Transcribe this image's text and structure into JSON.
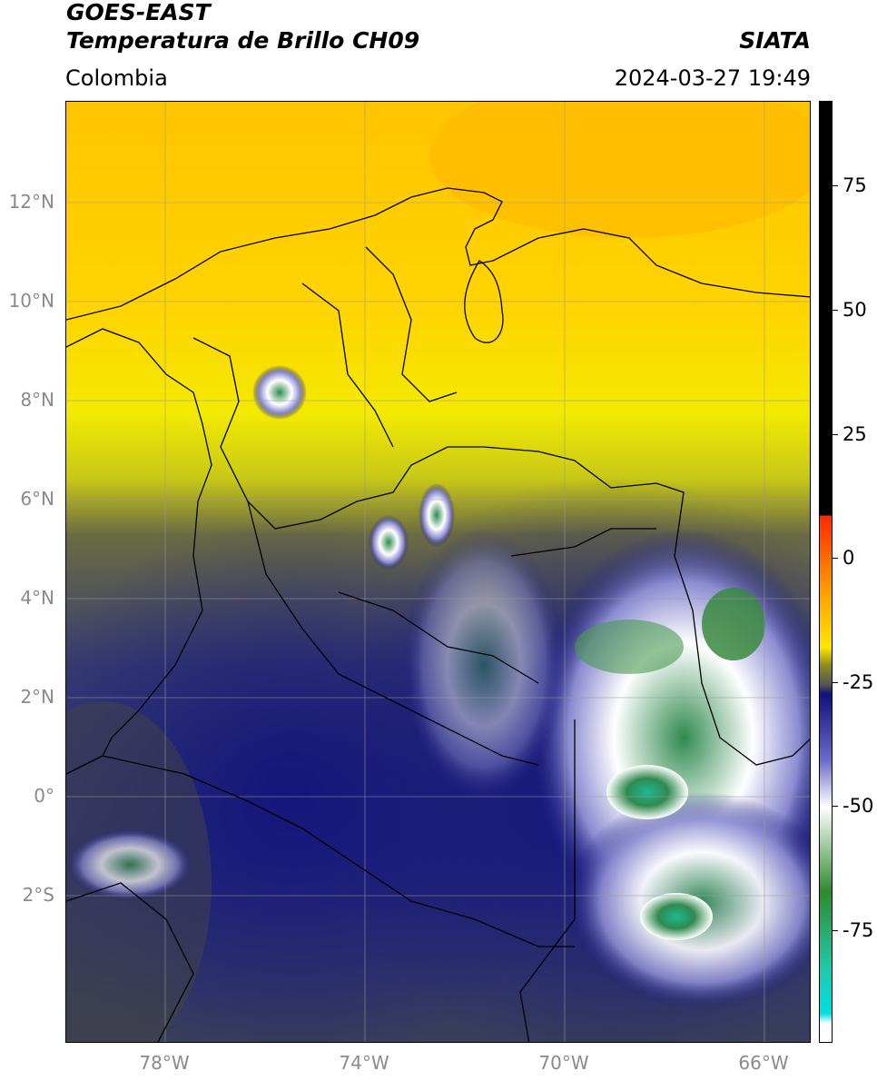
{
  "header": {
    "title_line1": "GOES-EAST",
    "title_line2": "Temperatura de Brillo CH09",
    "agency": "SIATA",
    "region": "Colombia",
    "datetime": "2024-03-27 19:49"
  },
  "map": {
    "lat_ticks": [
      "12°N",
      "10°N",
      "8°N",
      "6°N",
      "4°N",
      "2°N",
      "0°",
      "2°S"
    ],
    "lon_ticks": [
      "78°W",
      "74°W",
      "70°W",
      "66°W"
    ],
    "grid": true
  },
  "colorbar": {
    "ticks": [
      "75",
      "50",
      "25",
      "0",
      "-25",
      "-50",
      "-75"
    ],
    "colors": {
      "black": "#000000",
      "red": "#ff2a00",
      "orange": "#ff9c00",
      "yellow": "#ffe600",
      "olive": "#8a8a20",
      "gray": "#555555",
      "navy": "#10127a",
      "white": "#ffffff",
      "green": "#2f8a2f",
      "teal": "#20c8a8",
      "cyan": "#00e0e0"
    }
  }
}
